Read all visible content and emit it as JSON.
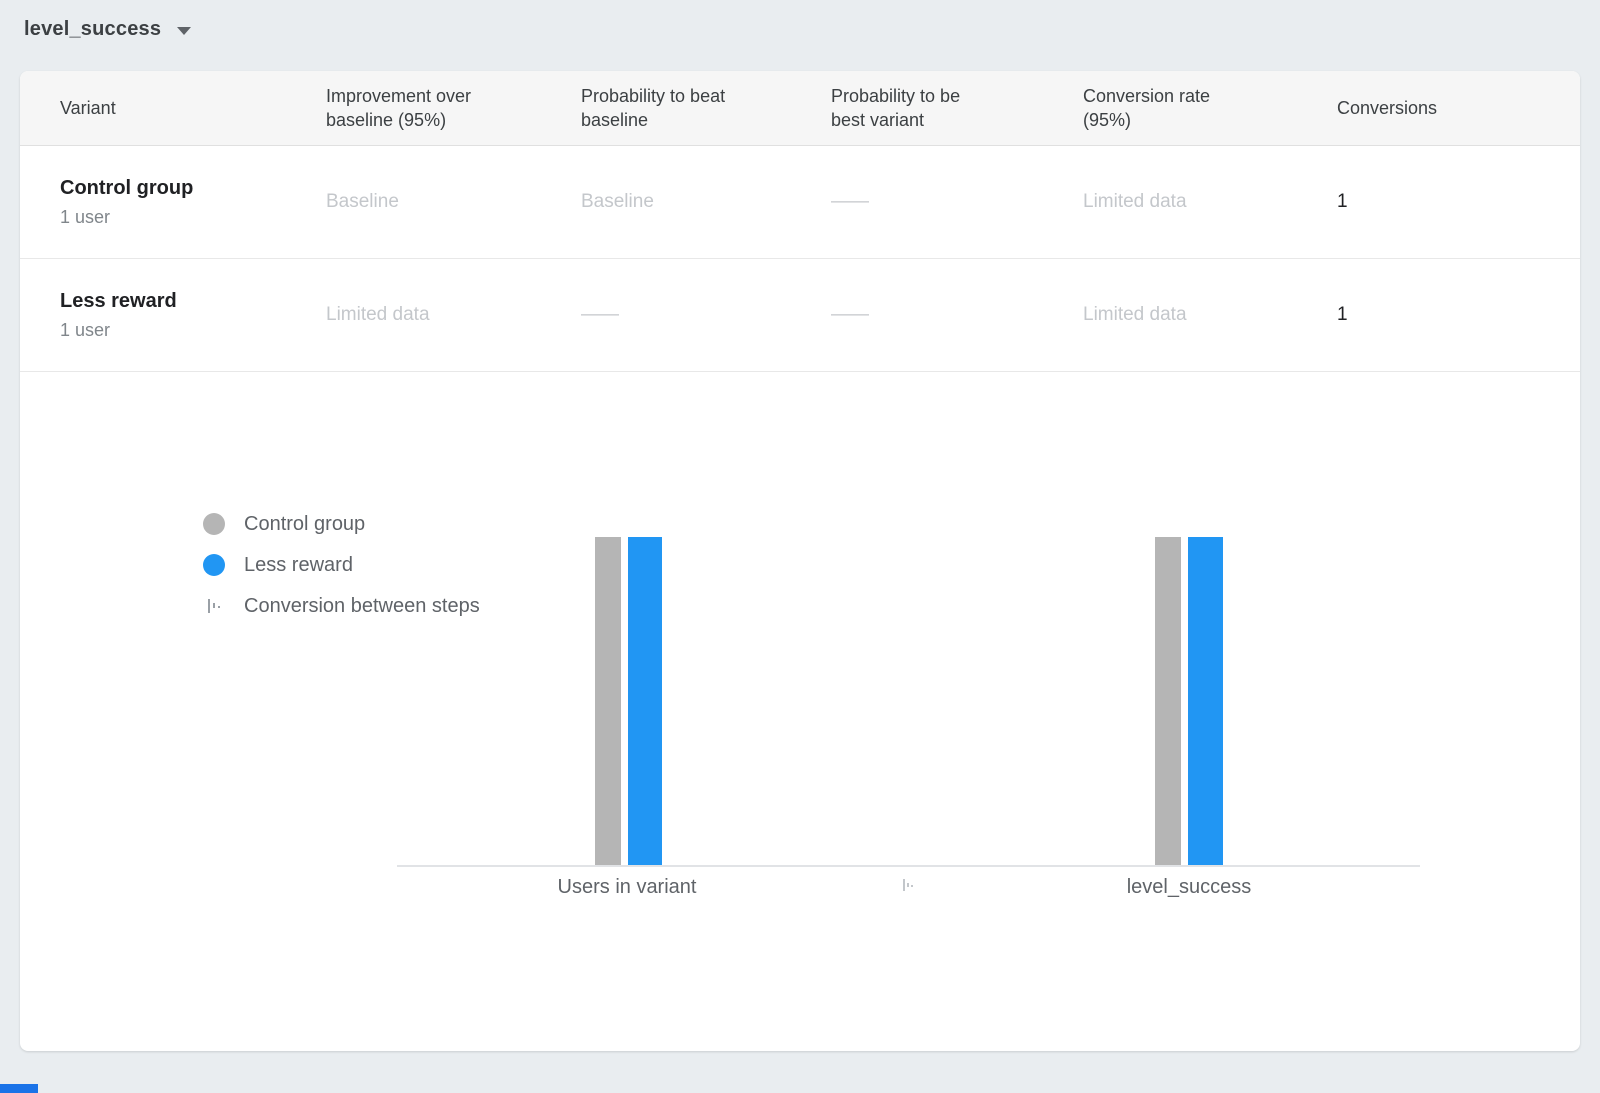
{
  "metric_selector": {
    "value": "level_success"
  },
  "page": {
    "bottom_accent_color": "#1a73e8"
  },
  "table": {
    "columns": [
      "Variant",
      "Improvement over\nbaseline (95%)",
      "Probability to beat\nbaseline",
      "Probability to be\nbest variant",
      "Conversion rate\n(95%)",
      "Conversions"
    ],
    "rows": [
      {
        "variant": "Control group",
        "users": "1 user",
        "improvement": "Baseline",
        "prob_beat_baseline": "Baseline",
        "prob_best_variant": "——",
        "conversion_rate": "Limited data",
        "conversions": "1"
      },
      {
        "variant": "Less reward",
        "users": "1 user",
        "improvement": "Limited data",
        "prob_beat_baseline": "——",
        "prob_best_variant": "——",
        "conversion_rate": "Limited data",
        "conversions": "1"
      }
    ]
  },
  "chart_data": {
    "type": "bar",
    "categories": [
      "Users in variant",
      "level_success"
    ],
    "series": [
      {
        "name": "Control group",
        "color": "#b5b5b5",
        "values": [
          1,
          1
        ]
      },
      {
        "name": "Less reward",
        "color": "#2196f3",
        "values": [
          1,
          1
        ]
      }
    ],
    "legend": [
      "Control group",
      "Less reward",
      "Conversion between steps"
    ],
    "ylim": [
      0,
      1
    ],
    "xlabel": "",
    "ylabel": "",
    "grid": false,
    "legend_position": "left"
  }
}
